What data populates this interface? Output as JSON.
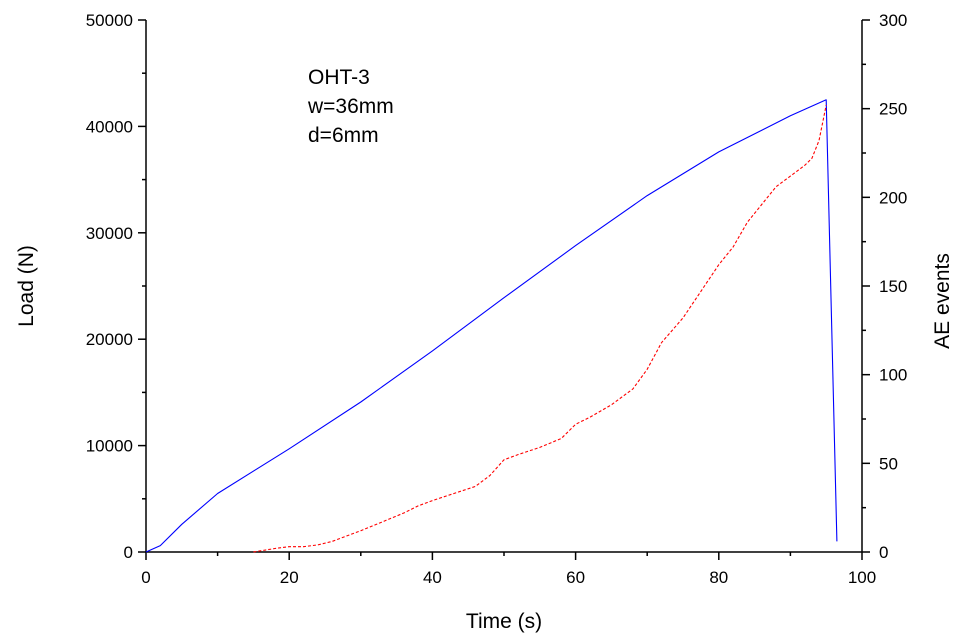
{
  "chart_data": {
    "type": "line",
    "xlabel": "Time (s)",
    "ylabel": "Load (N)",
    "y2label": "AE events",
    "xlim": [
      0,
      100
    ],
    "ylim": [
      0,
      50000
    ],
    "y2lim": [
      0,
      300
    ],
    "x_ticks": [
      0,
      20,
      40,
      60,
      80,
      100
    ],
    "y_ticks": [
      0,
      10000,
      20000,
      30000,
      40000,
      50000
    ],
    "y2_ticks": [
      0,
      50,
      100,
      150,
      200,
      250,
      300
    ],
    "annotation_lines": [
      "OHT-3",
      "w=36mm",
      "d=6mm"
    ],
    "grid": false,
    "series": [
      {
        "axis": "left",
        "color": "#0000ff",
        "style": "solid",
        "x": [
          0,
          2,
          5,
          10,
          20,
          30,
          40,
          50,
          60,
          70,
          80,
          90,
          95,
          96.5
        ],
        "y": [
          0,
          600,
          2600,
          5500,
          9700,
          14100,
          18900,
          23900,
          28800,
          33500,
          37600,
          41000,
          42500,
          1000
        ]
      },
      {
        "axis": "right",
        "color": "#ff0000",
        "style": "dashed",
        "x": [
          15,
          18,
          20,
          22,
          24,
          26,
          28,
          30,
          33,
          36,
          38,
          40,
          43,
          46,
          48,
          50,
          52,
          55,
          58,
          60,
          62,
          65,
          68,
          70,
          72,
          75,
          78,
          80,
          82,
          84,
          86,
          88,
          90,
          92,
          93,
          94,
          95
        ],
        "y": [
          0,
          2,
          3,
          3,
          4,
          6,
          9,
          12,
          17,
          22,
          26,
          29,
          33,
          37,
          43,
          52,
          55,
          59,
          64,
          72,
          76,
          83,
          92,
          103,
          118,
          132,
          150,
          162,
          172,
          186,
          196,
          206,
          212,
          218,
          222,
          232,
          252
        ]
      }
    ]
  }
}
